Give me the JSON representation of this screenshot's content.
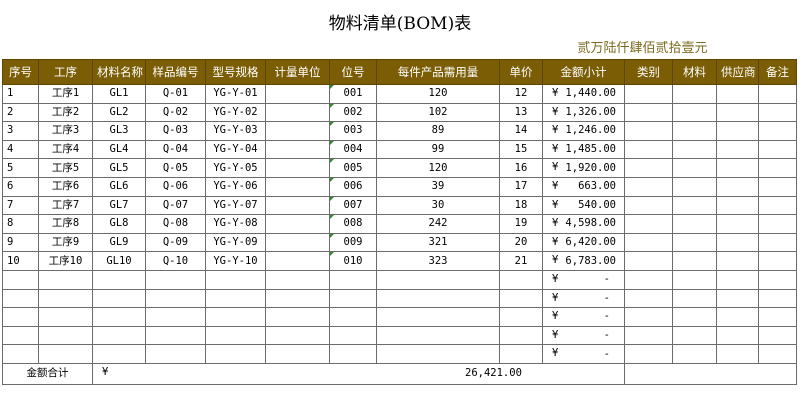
{
  "title": "物料清单(BOM)表",
  "total_in_words": "贰万陆仟肆佰贰拾壹元",
  "columns": [
    "序号",
    "工序",
    "材料名称",
    "样品编号",
    "型号规格",
    "计量单位",
    "位号",
    "每件产品需用量",
    "单价",
    "金额小计",
    "类别",
    "材料",
    "供应商",
    "备注"
  ],
  "currency_symbol": "¥",
  "rows": [
    {
      "seq": "1",
      "process": "工序1",
      "material": "GL1",
      "sample_no": "Q-01",
      "model": "YG-Y-01",
      "unit": "",
      "position": "001",
      "qty": "120",
      "price": "12",
      "amount": "1,440.00",
      "category": "",
      "mat": "",
      "supplier": "",
      "remark": ""
    },
    {
      "seq": "2",
      "process": "工序2",
      "material": "GL2",
      "sample_no": "Q-02",
      "model": "YG-Y-02",
      "unit": "",
      "position": "002",
      "qty": "102",
      "price": "13",
      "amount": "1,326.00",
      "category": "",
      "mat": "",
      "supplier": "",
      "remark": ""
    },
    {
      "seq": "3",
      "process": "工序3",
      "material": "GL3",
      "sample_no": "Q-03",
      "model": "YG-Y-03",
      "unit": "",
      "position": "003",
      "qty": "89",
      "price": "14",
      "amount": "1,246.00",
      "category": "",
      "mat": "",
      "supplier": "",
      "remark": ""
    },
    {
      "seq": "4",
      "process": "工序4",
      "material": "GL4",
      "sample_no": "Q-04",
      "model": "YG-Y-04",
      "unit": "",
      "position": "004",
      "qty": "99",
      "price": "15",
      "amount": "1,485.00",
      "category": "",
      "mat": "",
      "supplier": "",
      "remark": ""
    },
    {
      "seq": "5",
      "process": "工序5",
      "material": "GL5",
      "sample_no": "Q-05",
      "model": "YG-Y-05",
      "unit": "",
      "position": "005",
      "qty": "120",
      "price": "16",
      "amount": "1,920.00",
      "category": "",
      "mat": "",
      "supplier": "",
      "remark": ""
    },
    {
      "seq": "6",
      "process": "工序6",
      "material": "GL6",
      "sample_no": "Q-06",
      "model": "YG-Y-06",
      "unit": "",
      "position": "006",
      "qty": "39",
      "price": "17",
      "amount": "663.00",
      "category": "",
      "mat": "",
      "supplier": "",
      "remark": ""
    },
    {
      "seq": "7",
      "process": "工序7",
      "material": "GL7",
      "sample_no": "Q-07",
      "model": "YG-Y-07",
      "unit": "",
      "position": "007",
      "qty": "30",
      "price": "18",
      "amount": "540.00",
      "category": "",
      "mat": "",
      "supplier": "",
      "remark": ""
    },
    {
      "seq": "8",
      "process": "工序8",
      "material": "GL8",
      "sample_no": "Q-08",
      "model": "YG-Y-08",
      "unit": "",
      "position": "008",
      "qty": "242",
      "price": "19",
      "amount": "4,598.00",
      "category": "",
      "mat": "",
      "supplier": "",
      "remark": ""
    },
    {
      "seq": "9",
      "process": "工序9",
      "material": "GL9",
      "sample_no": "Q-09",
      "model": "YG-Y-09",
      "unit": "",
      "position": "009",
      "qty": "321",
      "price": "20",
      "amount": "6,420.00",
      "category": "",
      "mat": "",
      "supplier": "",
      "remark": ""
    },
    {
      "seq": "10",
      "process": "工序10",
      "material": "GL10",
      "sample_no": "Q-10",
      "model": "YG-Y-10",
      "unit": "",
      "position": "010",
      "qty": "323",
      "price": "21",
      "amount": "6,783.00",
      "category": "",
      "mat": "",
      "supplier": "",
      "remark": ""
    },
    {
      "seq": "",
      "process": "",
      "material": "",
      "sample_no": "",
      "model": "",
      "unit": "",
      "position": "",
      "qty": "",
      "price": "",
      "amount": "-",
      "category": "",
      "mat": "",
      "supplier": "",
      "remark": ""
    },
    {
      "seq": "",
      "process": "",
      "material": "",
      "sample_no": "",
      "model": "",
      "unit": "",
      "position": "",
      "qty": "",
      "price": "",
      "amount": "-",
      "category": "",
      "mat": "",
      "supplier": "",
      "remark": ""
    },
    {
      "seq": "",
      "process": "",
      "material": "",
      "sample_no": "",
      "model": "",
      "unit": "",
      "position": "",
      "qty": "",
      "price": "",
      "amount": "-",
      "category": "",
      "mat": "",
      "supplier": "",
      "remark": ""
    },
    {
      "seq": "",
      "process": "",
      "material": "",
      "sample_no": "",
      "model": "",
      "unit": "",
      "position": "",
      "qty": "",
      "price": "",
      "amount": "-",
      "category": "",
      "mat": "",
      "supplier": "",
      "remark": ""
    },
    {
      "seq": "",
      "process": "",
      "material": "",
      "sample_no": "",
      "model": "",
      "unit": "",
      "position": "",
      "qty": "",
      "price": "",
      "amount": "-",
      "category": "",
      "mat": "",
      "supplier": "",
      "remark": ""
    }
  ],
  "summary": {
    "label": "金额合计",
    "currency_symbol": "¥",
    "value": "26,421.00"
  },
  "colors": {
    "header_bg": "#7a5d05",
    "header_text": "#ffffff",
    "total_words_text": "#7b6a1e",
    "marker": "#2e8b2e",
    "grid": "#6b6b6b"
  }
}
